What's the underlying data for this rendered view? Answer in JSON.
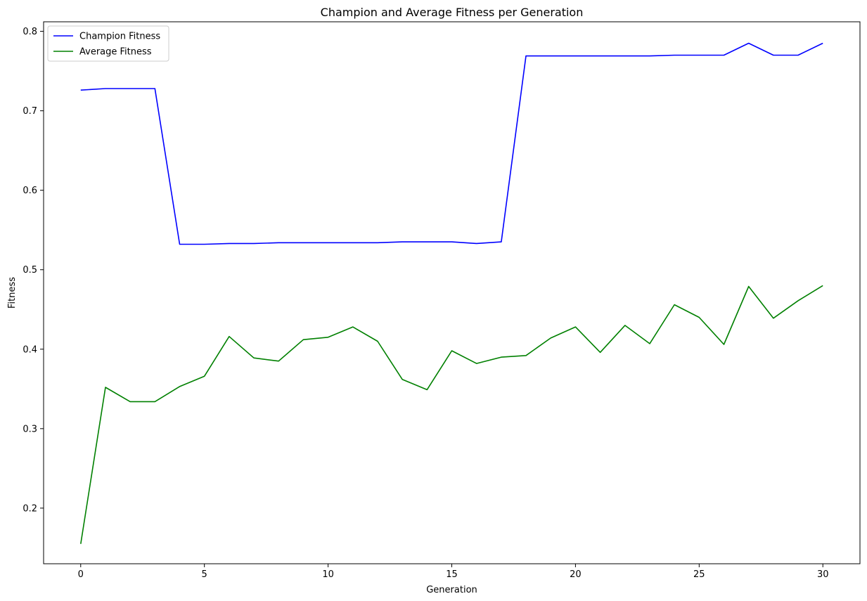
{
  "chart_data": {
    "type": "line",
    "title": "Champion and Average Fitness per Generation",
    "xlabel": "Generation",
    "ylabel": "Fitness",
    "xlim": [
      -1.5,
      31.5
    ],
    "ylim": [
      0.13,
      0.812
    ],
    "xticks": [
      0,
      5,
      10,
      15,
      20,
      25,
      30
    ],
    "yticks": [
      0.2,
      0.3,
      0.4,
      0.5,
      0.6,
      0.7,
      0.8
    ],
    "grid": false,
    "legend": "top-left",
    "x": [
      0,
      1,
      2,
      3,
      4,
      5,
      6,
      7,
      8,
      9,
      10,
      11,
      12,
      13,
      14,
      15,
      16,
      17,
      18,
      19,
      20,
      21,
      22,
      23,
      24,
      25,
      26,
      27,
      28,
      29,
      30
    ],
    "series": [
      {
        "name": "Champion Fitness",
        "color": "#0000ff",
        "values": [
          0.726,
          0.728,
          0.728,
          0.728,
          0.532,
          0.532,
          0.533,
          0.533,
          0.534,
          0.534,
          0.534,
          0.534,
          0.534,
          0.535,
          0.535,
          0.535,
          0.533,
          0.535,
          0.769,
          0.769,
          0.769,
          0.769,
          0.769,
          0.769,
          0.77,
          0.77,
          0.77,
          0.785,
          0.77,
          0.77,
          0.785
        ]
      },
      {
        "name": "Average Fitness",
        "color": "#008000",
        "values": [
          0.155,
          0.352,
          0.334,
          0.334,
          0.353,
          0.366,
          0.416,
          0.389,
          0.385,
          0.412,
          0.415,
          0.428,
          0.41,
          0.362,
          0.349,
          0.398,
          0.382,
          0.39,
          0.392,
          0.414,
          0.428,
          0.396,
          0.43,
          0.407,
          0.456,
          0.44,
          0.406,
          0.479,
          0.439,
          0.461,
          0.48
        ]
      }
    ]
  }
}
